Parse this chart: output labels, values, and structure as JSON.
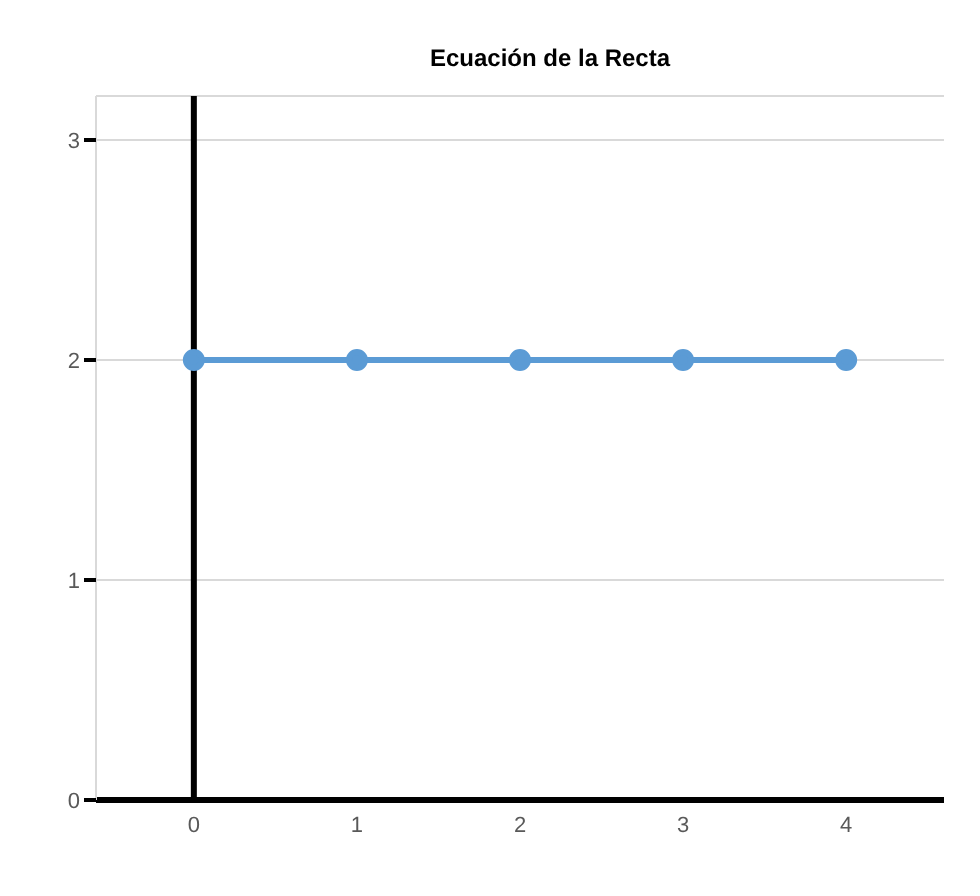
{
  "chart_data": {
    "type": "line",
    "title": "Ecuación de la Recta",
    "x": [
      0,
      1,
      2,
      3,
      4
    ],
    "series": [
      {
        "color": "#5b9bd5",
        "values": [
          2,
          2,
          2,
          2,
          2
        ]
      }
    ],
    "xlim": [
      -0.6,
      4.6
    ],
    "xticks": [
      0,
      1,
      2,
      3,
      4
    ],
    "ylim": [
      0,
      3.2
    ],
    "yticks": [
      0,
      1,
      2,
      3
    ],
    "grid": "y",
    "marker": "circle",
    "line_style": "solid",
    "ref_lines": [
      {
        "axis": "x",
        "value": 0,
        "color": "#000000"
      }
    ]
  }
}
